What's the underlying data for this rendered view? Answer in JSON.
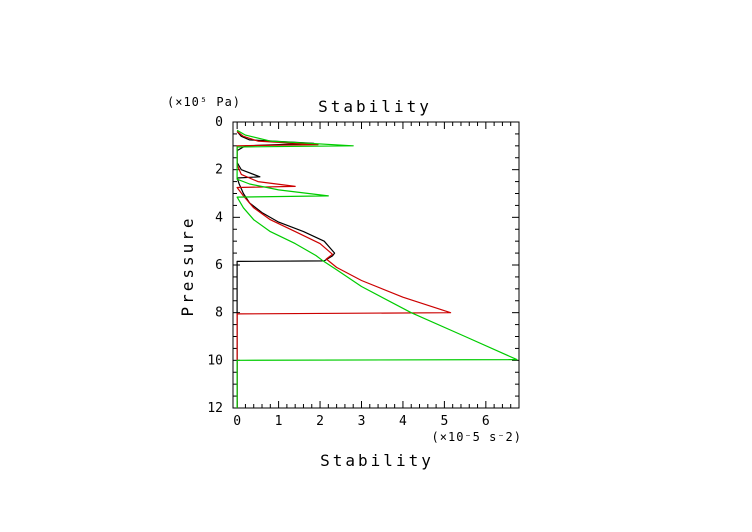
{
  "chart_data": {
    "type": "line",
    "title": "Stability",
    "xlabel": "Stability",
    "ylabel": "Pressure",
    "x_unit": "(×10⁻5 s⁻2)",
    "y_unit": "(×10⁵ Pa)",
    "xlim": [
      -0.1,
      6.8
    ],
    "ylim": [
      12,
      0
    ],
    "x_ticks": [
      0,
      1,
      2,
      3,
      4,
      5,
      6
    ],
    "x_tick_labels": [
      "0",
      "1",
      "2",
      "3",
      "4",
      "5",
      "6"
    ],
    "y_ticks": [
      0,
      2,
      4,
      6,
      8,
      10,
      12
    ],
    "y_tick_labels": [
      "0",
      "2",
      "4",
      "6",
      "8",
      "10",
      "12"
    ],
    "grid": false,
    "legend": "none",
    "series": [
      {
        "color": "#000000",
        "points": [
          [
            0.0,
            12
          ],
          [
            0.0,
            5.85
          ],
          [
            2.1,
            5.83
          ],
          [
            2.3,
            5.62
          ],
          [
            2.35,
            5.5
          ],
          [
            2.1,
            5.0
          ],
          [
            1.6,
            4.6
          ],
          [
            1.0,
            4.2
          ],
          [
            0.6,
            3.8
          ],
          [
            0.3,
            3.4
          ],
          [
            0.15,
            3.0
          ],
          [
            0.05,
            2.6
          ],
          [
            0.0,
            2.35
          ],
          [
            0.55,
            2.3
          ],
          [
            0.1,
            2.0
          ],
          [
            0.0,
            1.7
          ],
          [
            0.0,
            1.2
          ],
          [
            0.2,
            1.0
          ],
          [
            1.85,
            0.9
          ],
          [
            0.3,
            0.75
          ],
          [
            0.1,
            0.6
          ],
          [
            0.0,
            0.4
          ]
        ]
      },
      {
        "color": "#cc0000",
        "points": [
          [
            0.0,
            12
          ],
          [
            0.0,
            8.05
          ],
          [
            5.15,
            8.0
          ],
          [
            4.0,
            7.35
          ],
          [
            3.0,
            6.65
          ],
          [
            2.4,
            6.1
          ],
          [
            2.15,
            5.75
          ],
          [
            2.3,
            5.55
          ],
          [
            2.0,
            5.1
          ],
          [
            1.4,
            4.6
          ],
          [
            0.8,
            4.1
          ],
          [
            0.4,
            3.6
          ],
          [
            0.15,
            3.1
          ],
          [
            0.0,
            2.75
          ],
          [
            1.4,
            2.7
          ],
          [
            0.5,
            2.5
          ],
          [
            0.1,
            2.2
          ],
          [
            0.0,
            1.8
          ],
          [
            0.0,
            1.0
          ],
          [
            1.95,
            0.95
          ],
          [
            0.5,
            0.8
          ],
          [
            0.15,
            0.6
          ],
          [
            0.0,
            0.4
          ]
        ]
      },
      {
        "color": "#00cc00",
        "points": [
          [
            0.0,
            12
          ],
          [
            0.0,
            10.0
          ],
          [
            6.75,
            9.97
          ],
          [
            5.5,
            9.0
          ],
          [
            4.2,
            8.0
          ],
          [
            3.0,
            6.9
          ],
          [
            2.4,
            6.2
          ],
          [
            2.05,
            5.8
          ],
          [
            1.9,
            5.6
          ],
          [
            1.4,
            5.1
          ],
          [
            0.8,
            4.6
          ],
          [
            0.4,
            4.1
          ],
          [
            0.15,
            3.6
          ],
          [
            0.0,
            3.15
          ],
          [
            2.2,
            3.1
          ],
          [
            1.0,
            2.85
          ],
          [
            0.3,
            2.6
          ],
          [
            0.0,
            2.4
          ],
          [
            0.0,
            1.05
          ],
          [
            2.8,
            1.0
          ],
          [
            0.8,
            0.8
          ],
          [
            0.2,
            0.55
          ],
          [
            0.0,
            0.35
          ]
        ]
      }
    ]
  }
}
